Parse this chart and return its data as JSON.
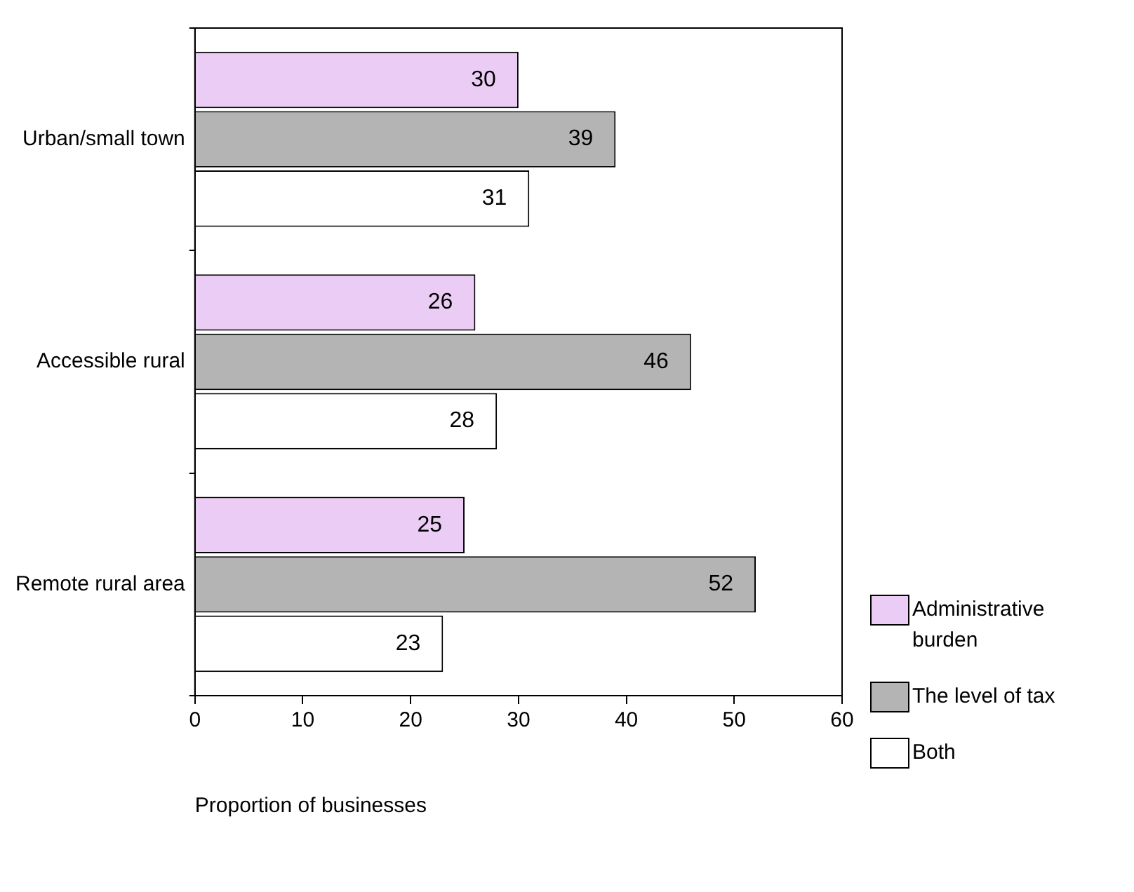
{
  "chart_data": {
    "type": "bar",
    "orientation": "horizontal",
    "xlabel": "Proportion of businesses",
    "categories": [
      "Urban/small town",
      "Accessible rural",
      "Remote rural area"
    ],
    "series": [
      {
        "name": "Administrative burden",
        "color": "#ebccf5",
        "values": [
          30,
          26,
          25
        ]
      },
      {
        "name": "The level of tax",
        "color": "#b4b4b4",
        "values": [
          39,
          46,
          52
        ]
      },
      {
        "name": "Both",
        "color": "#ffffff",
        "values": [
          31,
          28,
          23
        ]
      }
    ],
    "xlim": [
      0,
      60
    ],
    "xticks": [
      0,
      10,
      20,
      30,
      40,
      50,
      60
    ],
    "grid": false,
    "legend": "right",
    "data_labels": true
  }
}
